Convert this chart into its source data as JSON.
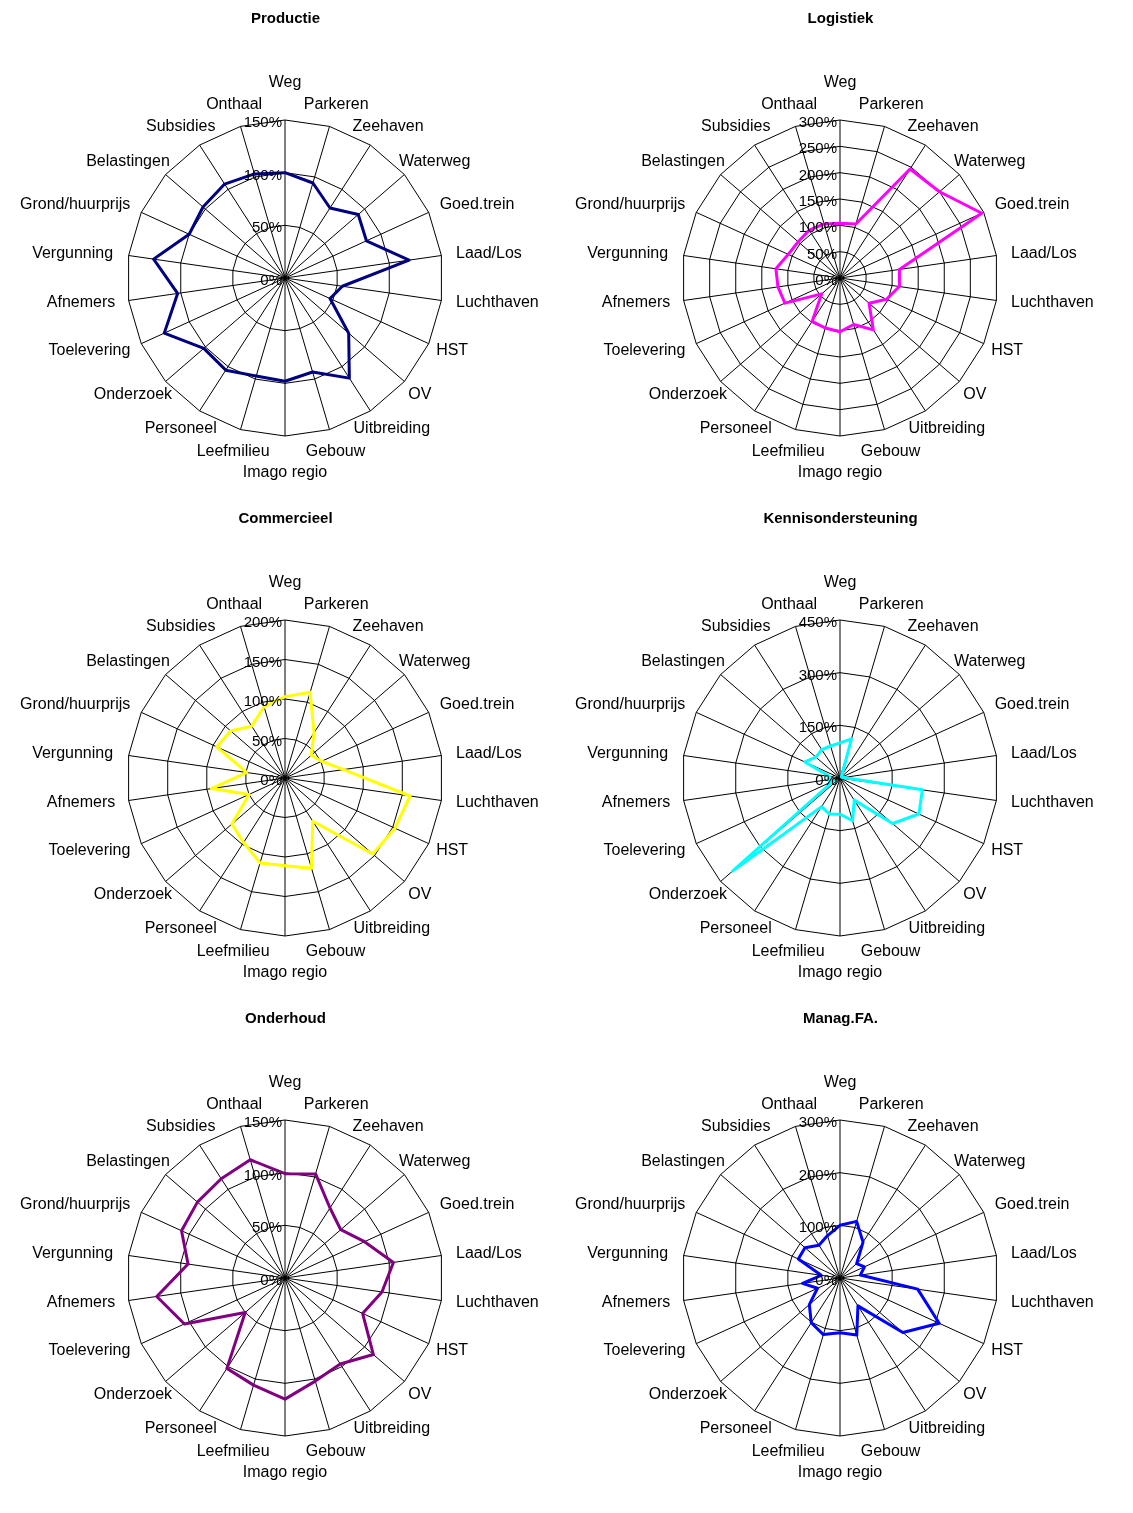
{
  "chart_data": [
    {
      "type": "radar",
      "title": "Productie",
      "categories": [
        "Weg",
        "Parkeren",
        "Zeehaven",
        "Waterweg",
        "Goed.trein",
        "Laad/Los",
        "Luchthaven",
        "HST",
        "OV",
        "Uitbreiding",
        "Gebouw",
        "Imago regio",
        "Leefmilieu",
        "Personeel",
        "Onderzoek",
        "Toelevering",
        "Afnemers",
        "Vergunning",
        "Grond/huurprijs",
        "Belastingen",
        "Subsidies",
        "Onthaal"
      ],
      "series": [
        {
          "color": "#000080",
          "values": [
            100,
            94,
            79,
            92,
            85,
            119,
            55,
            47,
            80,
            113,
            93,
            98,
            97,
            104,
            102,
            126,
            103,
            126,
            100,
            103,
            106,
            103
          ]
        }
      ],
      "ylim": [
        0,
        150
      ],
      "yticks": [
        {
          "value": 0,
          "label": "0%"
        },
        {
          "value": 50,
          "label": "50%"
        },
        {
          "value": 100,
          "label": "100%"
        },
        {
          "value": 150,
          "label": "150%"
        }
      ],
      "grid": true
    },
    {
      "type": "radar",
      "title": "Logistiek",
      "categories": [
        "Weg",
        "Parkeren",
        "Zeehaven",
        "Waterweg",
        "Goed.trein",
        "Laad/Los",
        "Luchthaven",
        "HST",
        "OV",
        "Uitbreiding",
        "Gebouw",
        "Imago regio",
        "Leefmilieu",
        "Personeel",
        "Onderzoek",
        "Toelevering",
        "Afnemers",
        "Vergunning",
        "Grond/huurprijs",
        "Belastingen",
        "Subsidies",
        "Onthaal"
      ],
      "series": [
        {
          "color": "#ff00ff",
          "values": [
            104,
            107,
            246,
            250,
            296,
            114,
            114,
            97,
            73,
            117,
            92,
            102,
            99,
            98,
            46,
            115,
            119,
            123,
            108,
            105,
            108,
            107
          ]
        }
      ],
      "ylim": [
        0,
        300
      ],
      "yticks": [
        {
          "value": 0,
          "label": "0%"
        },
        {
          "value": 50,
          "label": "50%"
        },
        {
          "value": 100,
          "label": "100%"
        },
        {
          "value": 150,
          "label": "150%"
        },
        {
          "value": 200,
          "label": "200%"
        },
        {
          "value": 250,
          "label": "250%"
        },
        {
          "value": 300,
          "label": "300%"
        }
      ],
      "grid": true
    },
    {
      "type": "radar",
      "title": "Commercieel",
      "categories": [
        "Weg",
        "Parkeren",
        "Zeehaven",
        "Waterweg",
        "Goed.trein",
        "Laad/Los",
        "Luchthaven",
        "HST",
        "OV",
        "Uitbreiding",
        "Gebouw",
        "Imago regio",
        "Leefmilieu",
        "Personeel",
        "Onderzoek",
        "Toelevering",
        "Afnemers",
        "Vergunning",
        "Grond/huurprijs",
        "Belastingen",
        "Subsidies",
        "Onthaal"
      ],
      "series": [
        {
          "color": "#ffff00",
          "values": [
            103,
            113,
            68,
            44,
            51,
            75,
            160,
            153,
            147,
            65,
            119,
            111,
            112,
            97,
            89,
            50,
            94,
            49,
            95,
            91,
            78,
            94
          ]
        }
      ],
      "ylim": [
        0,
        200
      ],
      "yticks": [
        {
          "value": 0,
          "label": "0%"
        },
        {
          "value": 50,
          "label": "50%"
        },
        {
          "value": 100,
          "label": "100%"
        },
        {
          "value": 150,
          "label": "150%"
        },
        {
          "value": 200,
          "label": "200%"
        }
      ],
      "grid": true
    },
    {
      "type": "radar",
      "title": "Kennisondersteuning",
      "categories": [
        "Weg",
        "Parkeren",
        "Zeehaven",
        "Waterweg",
        "Goed.trein",
        "Laad/Los",
        "Luchthaven",
        "HST",
        "OV",
        "Uitbreiding",
        "Gebouw",
        "Imago regio",
        "Leefmilieu",
        "Personeel",
        "Onderzoek",
        "Toelevering",
        "Afnemers",
        "Vergunning",
        "Grond/huurprijs",
        "Belastingen",
        "Subsidies",
        "Onthaal"
      ],
      "series": [
        {
          "color": "#00ffff",
          "values": [
            100,
            116,
            10,
            5,
            5,
            10,
            237,
            247,
            198,
            75,
            127,
            103,
            107,
            97,
            405,
            20,
            35,
            30,
            110,
            91,
            96,
            95
          ]
        }
      ],
      "ylim": [
        0,
        450
      ],
      "yticks": [
        {
          "value": 0,
          "label": "0%"
        },
        {
          "value": 150,
          "label": "150%"
        },
        {
          "value": 300,
          "label": "300%"
        },
        {
          "value": 450,
          "label": "450%"
        }
      ],
      "grid": true
    },
    {
      "type": "radar",
      "title": "Onderhoud",
      "categories": [
        "Weg",
        "Parkeren",
        "Zeehaven",
        "Waterweg",
        "Goed.trein",
        "Laad/Los",
        "Luchthaven",
        "HST",
        "OV",
        "Uitbreiding",
        "Gebouw",
        "Imago regio",
        "Leefmilieu",
        "Personeel",
        "Onderzoek",
        "Toelevering",
        "Afnemers",
        "Vergunning",
        "Grond/huurprijs",
        "Belastingen",
        "Subsidies",
        "Onthaal"
      ],
      "series": [
        {
          "color": "#800080",
          "values": [
            99,
            103,
            79,
            70,
            83,
            104,
            93,
            81,
            111,
            97,
            102,
            115,
            106,
            102,
            50,
            105,
            123,
            93,
            108,
            110,
            112,
            117
          ]
        }
      ],
      "ylim": [
        0,
        150
      ],
      "yticks": [
        {
          "value": 0,
          "label": "0%"
        },
        {
          "value": 50,
          "label": "50%"
        },
        {
          "value": 100,
          "label": "100%"
        },
        {
          "value": 150,
          "label": "150%"
        }
      ],
      "grid": true
    },
    {
      "type": "radar",
      "title": "Manag.FA.",
      "categories": [
        "Weg",
        "Parkeren",
        "Zeehaven",
        "Waterweg",
        "Goed.trein",
        "Laad/Los",
        "Luchthaven",
        "HST",
        "OV",
        "Uitbreiding",
        "Gebouw",
        "Imago regio",
        "Leefmilieu",
        "Personeel",
        "Onderzoek",
        "Toelevering",
        "Afnemers",
        "Vergunning",
        "Grond/huurprijs",
        "Belastingen",
        "Subsidies",
        "Onthaal"
      ],
      "series": [
        {
          "color": "#0000ff",
          "values": [
            100,
            112,
            81,
            42,
            51,
            39,
            149,
            207,
            158,
            63,
            113,
            104,
            112,
            101,
            77,
            47,
            72,
            36,
            87,
            88,
            74,
            84
          ]
        }
      ],
      "ylim": [
        0,
        300
      ],
      "yticks": [
        {
          "value": 0,
          "label": "0%"
        },
        {
          "value": 100,
          "label": "100%"
        },
        {
          "value": 200,
          "label": "200%"
        },
        {
          "value": 300,
          "label": "300%"
        }
      ],
      "grid": true
    }
  ]
}
